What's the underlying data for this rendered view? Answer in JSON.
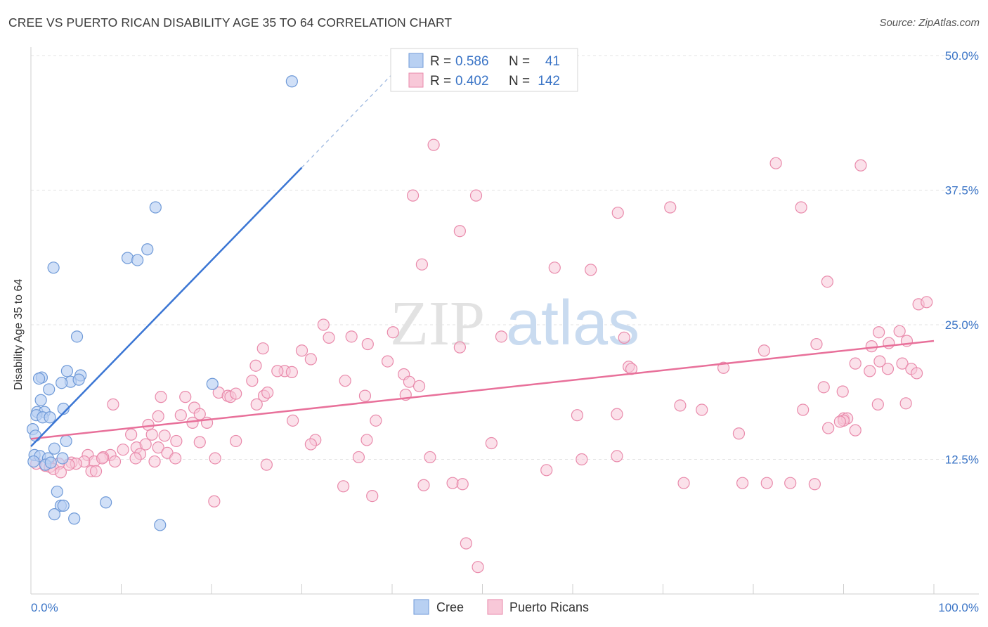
{
  "header": {
    "title": "CREE VS PUERTO RICAN DISABILITY AGE 35 TO 64 CORRELATION CHART",
    "source": "Source: ZipAtlas.com"
  },
  "watermark": {
    "zip": "ZIP",
    "atlas": "atlas"
  },
  "colors": {
    "cree_fill": "#b8d0f2",
    "cree_stroke": "#6f9ad8",
    "cree_line": "#3b76d4",
    "pr_fill": "#f8c8d8",
    "pr_stroke": "#e98aab",
    "pr_line": "#e8709a",
    "tick_text": "#3a74c6",
    "grid": "#e3e3e3"
  },
  "stats": {
    "cree": {
      "r_label": "R =",
      "r": "0.586",
      "n_label": "N =",
      "n": "41"
    },
    "pr": {
      "r_label": "R =",
      "r": "0.402",
      "n_label": "N =",
      "n": "142"
    }
  },
  "chart_data": {
    "type": "scatter",
    "title": "CREE VS PUERTO RICAN DISABILITY AGE 35 TO 64 CORRELATION CHART",
    "xlabel": "",
    "ylabel": "Disability Age 35 to 64",
    "xlim": [
      0,
      100
    ],
    "ylim": [
      0,
      50
    ],
    "x_tick_labels": {
      "min": "0.0%",
      "max": "100.0%"
    },
    "y_ticks": [
      {
        "value": 12.5,
        "label": "12.5%"
      },
      {
        "value": 25.0,
        "label": "25.0%"
      },
      {
        "value": 37.5,
        "label": "37.5%"
      },
      {
        "value": 50.0,
        "label": "50.0%"
      }
    ],
    "grid": true,
    "legend": {
      "position": "bottom-center",
      "entries": [
        "Cree",
        "Puerto Ricans"
      ]
    },
    "series": [
      {
        "name": "Cree",
        "r": 0.586,
        "n": 41,
        "trend": {
          "x0": 0.0,
          "y0": 13.7,
          "x1": 30.0,
          "y1": 39.6,
          "dash_x1": 42.0,
          "dash_y1": 50.0
        },
        "points": [
          [
            28.9,
            47.6
          ],
          [
            13.8,
            35.9
          ],
          [
            10.7,
            31.2
          ],
          [
            12.9,
            32.0
          ],
          [
            11.8,
            31.0
          ],
          [
            2.5,
            30.3
          ],
          [
            5.1,
            23.9
          ],
          [
            1.2,
            20.1
          ],
          [
            0.9,
            20.0
          ],
          [
            4.0,
            20.7
          ],
          [
            4.4,
            19.7
          ],
          [
            3.4,
            19.6
          ],
          [
            5.5,
            20.3
          ],
          [
            5.3,
            19.9
          ],
          [
            2.0,
            19.0
          ],
          [
            1.1,
            18.0
          ],
          [
            0.7,
            16.9
          ],
          [
            1.5,
            16.9
          ],
          [
            3.6,
            17.2
          ],
          [
            0.6,
            16.6
          ],
          [
            1.3,
            16.4
          ],
          [
            2.1,
            16.4
          ],
          [
            0.2,
            15.3
          ],
          [
            0.5,
            14.7
          ],
          [
            3.9,
            14.2
          ],
          [
            0.4,
            12.9
          ],
          [
            2.6,
            13.5
          ],
          [
            1.0,
            12.8
          ],
          [
            1.9,
            12.6
          ],
          [
            3.5,
            12.6
          ],
          [
            1.6,
            12.0
          ],
          [
            2.2,
            12.2
          ],
          [
            0.3,
            12.3
          ],
          [
            2.9,
            9.5
          ],
          [
            8.3,
            8.5
          ],
          [
            3.3,
            8.2
          ],
          [
            3.6,
            8.2
          ],
          [
            2.6,
            7.4
          ],
          [
            4.8,
            7.0
          ],
          [
            14.3,
            6.4
          ],
          [
            20.1,
            19.5
          ]
        ]
      },
      {
        "name": "Puerto Ricans",
        "r": 0.402,
        "n": 142,
        "trend": {
          "x0": 0.0,
          "y0": 14.4,
          "x1": 100.0,
          "y1": 23.5
        },
        "points": [
          [
            44.6,
            41.7
          ],
          [
            82.5,
            40.0
          ],
          [
            91.9,
            39.8
          ],
          [
            42.3,
            37.0
          ],
          [
            49.3,
            37.0
          ],
          [
            70.8,
            35.9
          ],
          [
            85.3,
            35.9
          ],
          [
            65.0,
            35.4
          ],
          [
            47.5,
            33.7
          ],
          [
            43.3,
            30.6
          ],
          [
            58.0,
            30.3
          ],
          [
            62.0,
            30.1
          ],
          [
            88.2,
            29.0
          ],
          [
            98.3,
            26.9
          ],
          [
            99.2,
            27.1
          ],
          [
            32.4,
            25.0
          ],
          [
            40.1,
            24.3
          ],
          [
            93.9,
            24.3
          ],
          [
            96.2,
            24.4
          ],
          [
            33.0,
            23.8
          ],
          [
            35.5,
            23.9
          ],
          [
            52.1,
            23.9
          ],
          [
            65.7,
            23.8
          ],
          [
            97.0,
            23.5
          ],
          [
            95.0,
            23.3
          ],
          [
            37.3,
            23.2
          ],
          [
            87.0,
            23.2
          ],
          [
            93.1,
            23.0
          ],
          [
            25.7,
            22.8
          ],
          [
            47.5,
            22.9
          ],
          [
            30.0,
            22.6
          ],
          [
            81.2,
            22.6
          ],
          [
            31.0,
            21.8
          ],
          [
            94.0,
            21.6
          ],
          [
            39.5,
            21.6
          ],
          [
            91.3,
            21.4
          ],
          [
            24.9,
            21.2
          ],
          [
            96.5,
            21.4
          ],
          [
            66.2,
            21.1
          ],
          [
            66.5,
            20.9
          ],
          [
            76.7,
            21.0
          ],
          [
            94.9,
            20.9
          ],
          [
            92.9,
            20.7
          ],
          [
            97.5,
            20.9
          ],
          [
            28.1,
            20.7
          ],
          [
            28.9,
            20.6
          ],
          [
            27.3,
            20.7
          ],
          [
            41.3,
            20.4
          ],
          [
            98.1,
            20.5
          ],
          [
            24.5,
            19.8
          ],
          [
            34.8,
            19.8
          ],
          [
            41.9,
            19.7
          ],
          [
            43.0,
            19.3
          ],
          [
            87.8,
            19.2
          ],
          [
            20.8,
            18.7
          ],
          [
            21.8,
            18.4
          ],
          [
            22.1,
            18.3
          ],
          [
            25.8,
            18.4
          ],
          [
            26.2,
            18.7
          ],
          [
            89.9,
            18.8
          ],
          [
            22.7,
            18.6
          ],
          [
            37.0,
            18.4
          ],
          [
            41.5,
            18.5
          ],
          [
            14.4,
            18.3
          ],
          [
            17.1,
            18.3
          ],
          [
            25.0,
            17.6
          ],
          [
            9.1,
            17.6
          ],
          [
            18.1,
            17.3
          ],
          [
            71.9,
            17.5
          ],
          [
            93.8,
            17.6
          ],
          [
            96.9,
            17.7
          ],
          [
            74.3,
            17.1
          ],
          [
            85.5,
            17.1
          ],
          [
            18.7,
            16.7
          ],
          [
            16.6,
            16.6
          ],
          [
            60.5,
            16.6
          ],
          [
            64.9,
            16.7
          ],
          [
            14.1,
            16.5
          ],
          [
            29.0,
            16.1
          ],
          [
            38.2,
            16.1
          ],
          [
            90.0,
            16.3
          ],
          [
            90.4,
            16.3
          ],
          [
            17.9,
            15.9
          ],
          [
            19.5,
            15.9
          ],
          [
            90.0,
            16.1
          ],
          [
            89.6,
            16.0
          ],
          [
            13.0,
            15.7
          ],
          [
            88.3,
            15.4
          ],
          [
            91.3,
            15.2
          ],
          [
            78.4,
            14.9
          ],
          [
            11.1,
            14.8
          ],
          [
            13.4,
            14.8
          ],
          [
            14.8,
            14.7
          ],
          [
            31.5,
            14.3
          ],
          [
            37.2,
            14.3
          ],
          [
            16.1,
            14.2
          ],
          [
            18.7,
            14.1
          ],
          [
            31.0,
            13.9
          ],
          [
            51.0,
            14.0
          ],
          [
            22.7,
            14.2
          ],
          [
            11.7,
            13.6
          ],
          [
            12.7,
            13.9
          ],
          [
            10.2,
            13.4
          ],
          [
            14.1,
            13.6
          ],
          [
            15.1,
            13.1
          ],
          [
            12.1,
            13.0
          ],
          [
            8.8,
            12.9
          ],
          [
            11.6,
            12.6
          ],
          [
            8.0,
            12.7
          ],
          [
            6.3,
            12.9
          ],
          [
            7.0,
            12.3
          ],
          [
            7.9,
            12.6
          ],
          [
            5.9,
            12.3
          ],
          [
            9.3,
            12.3
          ],
          [
            13.7,
            12.3
          ],
          [
            16.0,
            12.6
          ],
          [
            20.4,
            12.6
          ],
          [
            36.3,
            12.7
          ],
          [
            44.2,
            12.7
          ],
          [
            61.0,
            12.5
          ],
          [
            64.9,
            12.8
          ],
          [
            4.5,
            12.2
          ],
          [
            5.0,
            12.1
          ],
          [
            4.2,
            12.0
          ],
          [
            3.1,
            12.1
          ],
          [
            0.6,
            12.1
          ],
          [
            1.6,
            11.9
          ],
          [
            2.1,
            11.8
          ],
          [
            2.5,
            11.6
          ],
          [
            6.7,
            11.4
          ],
          [
            7.2,
            11.4
          ],
          [
            3.3,
            11.3
          ],
          [
            26.1,
            12.0
          ],
          [
            57.1,
            11.5
          ],
          [
            72.3,
            10.3
          ],
          [
            78.8,
            10.3
          ],
          [
            81.5,
            10.3
          ],
          [
            84.1,
            10.3
          ],
          [
            86.8,
            10.2
          ],
          [
            46.7,
            10.3
          ],
          [
            47.8,
            10.2
          ],
          [
            43.5,
            10.1
          ],
          [
            34.6,
            10.0
          ],
          [
            37.8,
            9.1
          ],
          [
            20.3,
            8.6
          ],
          [
            48.2,
            4.7
          ],
          [
            49.5,
            2.5
          ]
        ]
      }
    ]
  }
}
